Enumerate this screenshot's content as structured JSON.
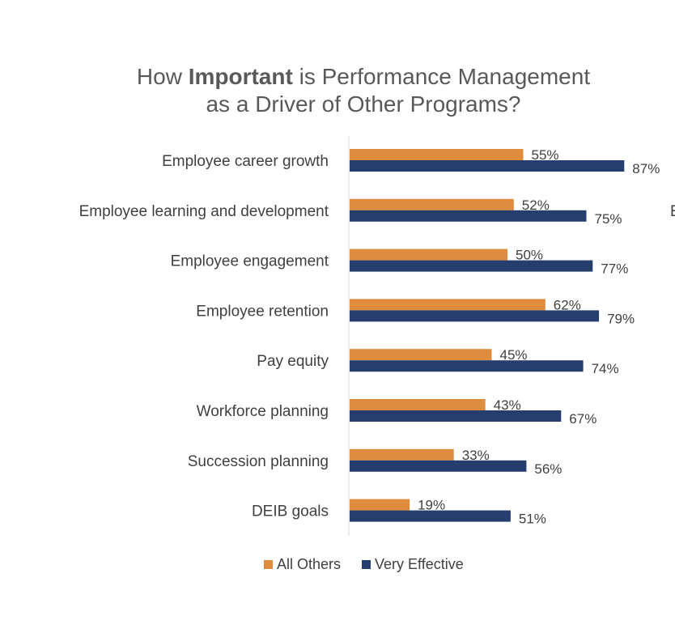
{
  "chart_data": {
    "type": "bar",
    "orientation": "horizontal",
    "title_parts": [
      {
        "text": "How ",
        "bold": false,
        "line": 0
      },
      {
        "text": "Important",
        "bold": true,
        "line": 0
      },
      {
        "text": " is Performance Management",
        "bold": false,
        "line": 0
      },
      {
        "text": "as a Driver of Other Programs?",
        "bold": false,
        "line": 1
      }
    ],
    "categories": [
      "Employee career growth",
      "Employee learning and development",
      "Employee engagement",
      "Employee retention",
      "Pay equity",
      "Workforce planning",
      "Succession planning",
      "DEIB goals"
    ],
    "series": [
      {
        "name": "All Others",
        "color": "#E08C3E",
        "values": [
          55,
          52,
          50,
          62,
          45,
          43,
          33,
          19
        ]
      },
      {
        "name": "Very Effective",
        "color": "#253E6E",
        "values": [
          87,
          75,
          77,
          79,
          74,
          67,
          56,
          51
        ]
      }
    ],
    "value_suffix": "%",
    "xlim": [
      0,
      100
    ],
    "grid": false,
    "legend": "bottom",
    "edge_text": "E"
  }
}
